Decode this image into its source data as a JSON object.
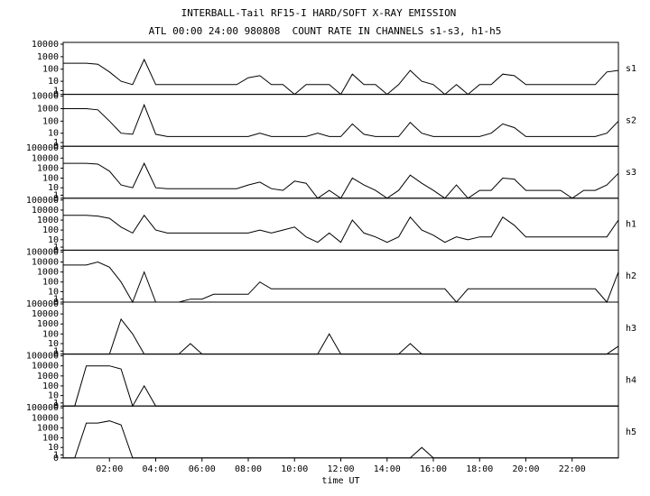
{
  "chart_data": [
    {
      "type": "line",
      "title": "INTERBALL-Tail RF15-I HARD/SOFT X-RAY EMISSION",
      "subtitle": "ATL 00:00 24:00 980808  COUNT RATE IN CHANNELS s1-s3, h1-h5",
      "label": "s1",
      "log_scale": true,
      "color": "#000000",
      "xlim": [
        0,
        24
      ],
      "ylim": [
        0,
        10000
      ],
      "yticks": [
        10000,
        1000,
        100,
        10,
        1,
        0
      ],
      "x": [
        0,
        0.5,
        1,
        1.5,
        2,
        2.5,
        3,
        3.5,
        4,
        4.5,
        5,
        5.5,
        6,
        6.5,
        7,
        7.5,
        8,
        8.5,
        9,
        9.5,
        10,
        10.5,
        11,
        11.5,
        12,
        12.5,
        13,
        13.5,
        14,
        14.5,
        15,
        15.5,
        16,
        16.5,
        17,
        17.5,
        18,
        18.5,
        19,
        19.5,
        20,
        20.5,
        21,
        21.5,
        22,
        22.5,
        23,
        23.5,
        24
      ],
      "values": [
        300,
        300,
        300,
        250,
        60,
        10,
        5,
        600,
        5,
        5,
        5,
        5,
        5,
        5,
        5,
        5,
        20,
        30,
        5,
        5,
        0,
        5,
        5,
        5,
        0,
        40,
        5,
        5,
        0,
        5,
        80,
        10,
        5,
        0,
        5,
        0,
        5,
        5,
        40,
        30,
        5,
        5,
        5,
        5,
        5,
        5,
        5,
        60,
        80
      ]
    },
    {
      "type": "line",
      "label": "s2",
      "log_scale": true,
      "color": "#000000",
      "xlim": [
        0,
        24
      ],
      "ylim": [
        0,
        10000
      ],
      "yticks": [
        10000,
        1000,
        100,
        10,
        1,
        0
      ],
      "x": [
        0,
        0.5,
        1,
        1.5,
        2,
        2.5,
        3,
        3.5,
        4,
        4.5,
        5,
        5.5,
        6,
        6.5,
        7,
        7.5,
        8,
        8.5,
        9,
        9.5,
        10,
        10.5,
        11,
        11.5,
        12,
        12.5,
        13,
        13.5,
        14,
        14.5,
        15,
        15.5,
        16,
        16.5,
        17,
        17.5,
        18,
        18.5,
        19,
        19.5,
        20,
        20.5,
        21,
        21.5,
        22,
        22.5,
        23,
        23.5,
        24
      ],
      "values": [
        1000,
        1000,
        1000,
        800,
        100,
        10,
        8,
        2000,
        8,
        5,
        5,
        5,
        5,
        5,
        5,
        5,
        5,
        10,
        5,
        5,
        5,
        5,
        10,
        5,
        5,
        60,
        8,
        5,
        5,
        5,
        80,
        10,
        5,
        5,
        5,
        5,
        5,
        10,
        60,
        30,
        5,
        5,
        5,
        5,
        5,
        5,
        5,
        10,
        100
      ]
    },
    {
      "type": "line",
      "label": "s3",
      "log_scale": true,
      "color": "#000000",
      "xlim": [
        0,
        24
      ],
      "ylim": [
        0,
        100000
      ],
      "yticks": [
        100000,
        10000,
        1000,
        100,
        10,
        1,
        0
      ],
      "x": [
        0,
        0.5,
        1,
        1.5,
        2,
        2.5,
        3,
        3.5,
        4,
        4.5,
        5,
        5.5,
        6,
        6.5,
        7,
        7.5,
        8,
        8.5,
        9,
        9.5,
        10,
        10.5,
        11,
        11.5,
        12,
        12.5,
        13,
        13.5,
        14,
        14.5,
        15,
        15.5,
        16,
        16.5,
        17,
        17.5,
        18,
        18.5,
        19,
        19.5,
        20,
        20.5,
        21,
        21.5,
        22,
        22.5,
        23,
        23.5,
        24
      ],
      "values": [
        3000,
        3000,
        3000,
        2500,
        500,
        20,
        10,
        3000,
        10,
        8,
        8,
        8,
        8,
        8,
        8,
        8,
        20,
        40,
        8,
        5,
        50,
        30,
        0,
        5,
        0,
        100,
        20,
        5,
        0,
        5,
        200,
        30,
        5,
        0,
        20,
        0,
        5,
        5,
        100,
        80,
        5,
        5,
        5,
        5,
        0,
        5,
        5,
        20,
        300
      ]
    },
    {
      "type": "line",
      "label": "h1",
      "log_scale": true,
      "color": "#000000",
      "xlim": [
        0,
        24
      ],
      "ylim": [
        0,
        100000
      ],
      "yticks": [
        100000,
        10000,
        1000,
        100,
        10,
        1,
        0
      ],
      "x": [
        0,
        0.5,
        1,
        1.5,
        2,
        2.5,
        3,
        3.5,
        4,
        4.5,
        5,
        5.5,
        6,
        6.5,
        7,
        7.5,
        8,
        8.5,
        9,
        9.5,
        10,
        10.5,
        11,
        11.5,
        12,
        12.5,
        13,
        13.5,
        14,
        14.5,
        15,
        15.5,
        16,
        16.5,
        17,
        17.5,
        18,
        18.5,
        19,
        19.5,
        20,
        20.5,
        21,
        21.5,
        22,
        22.5,
        23,
        23.5,
        24
      ],
      "values": [
        3000,
        3000,
        3000,
        2500,
        1500,
        200,
        50,
        3000,
        100,
        50,
        50,
        50,
        50,
        50,
        50,
        50,
        50,
        100,
        50,
        100,
        200,
        20,
        5,
        50,
        5,
        1000,
        50,
        20,
        5,
        20,
        2000,
        100,
        30,
        5,
        20,
        10,
        20,
        20,
        2000,
        300,
        20,
        20,
        20,
        20,
        20,
        20,
        20,
        20,
        1000
      ]
    },
    {
      "type": "line",
      "label": "h2",
      "log_scale": true,
      "color": "#000000",
      "xlim": [
        0,
        24
      ],
      "ylim": [
        0,
        100000
      ],
      "yticks": [
        100000,
        10000,
        1000,
        100,
        10,
        1,
        0
      ],
      "x": [
        0,
        0.5,
        1,
        1.5,
        2,
        2.5,
        3,
        3.5,
        4,
        4.5,
        5,
        5.5,
        6,
        6.5,
        7,
        7.5,
        8,
        8.5,
        9,
        9.5,
        10,
        10.5,
        11,
        11.5,
        12,
        12.5,
        13,
        13.5,
        14,
        14.5,
        15,
        15.5,
        16,
        16.5,
        17,
        17.5,
        18,
        18.5,
        19,
        19.5,
        20,
        20.5,
        21,
        21.5,
        22,
        22.5,
        23,
        23.5,
        24
      ],
      "values": [
        5000,
        5000,
        5000,
        10000,
        3000,
        100,
        0,
        1000,
        0,
        0,
        0,
        1,
        1,
        5,
        5,
        5,
        5,
        100,
        20,
        20,
        20,
        20,
        20,
        20,
        20,
        20,
        20,
        20,
        20,
        20,
        20,
        20,
        20,
        20,
        0,
        20,
        20,
        20,
        20,
        20,
        20,
        20,
        20,
        20,
        20,
        20,
        20,
        0,
        1000
      ]
    },
    {
      "type": "line",
      "label": "h3",
      "log_scale": true,
      "color": "#000000",
      "xlim": [
        0,
        24
      ],
      "ylim": [
        0,
        100000
      ],
      "yticks": [
        100000,
        10000,
        1000,
        100,
        10,
        1,
        0
      ],
      "x": [
        0,
        0.5,
        1,
        1.5,
        2,
        2.5,
        3,
        3.5,
        4,
        4.5,
        5,
        5.5,
        6,
        6.5,
        7,
        7.5,
        8,
        8.5,
        9,
        9.5,
        10,
        10.5,
        11,
        11.5,
        12,
        12.5,
        13,
        13.5,
        14,
        14.5,
        15,
        15.5,
        16,
        16.5,
        17,
        17.5,
        18,
        18.5,
        19,
        19.5,
        20,
        20.5,
        21,
        21.5,
        22,
        22.5,
        23,
        23.5,
        24
      ],
      "values": [
        0,
        0,
        0,
        0,
        0,
        3000,
        100,
        0,
        0,
        0,
        0,
        10,
        0,
        0,
        0,
        0,
        0,
        0,
        0,
        0,
        0,
        0,
        0,
        100,
        0,
        0,
        0,
        0,
        0,
        0,
        10,
        0,
        0,
        0,
        0,
        0,
        0,
        0,
        0,
        0,
        0,
        0,
        0,
        0,
        0,
        0,
        0,
        0,
        5
      ]
    },
    {
      "type": "line",
      "label": "h4",
      "log_scale": true,
      "color": "#000000",
      "xlim": [
        0,
        24
      ],
      "ylim": [
        0,
        100000
      ],
      "yticks": [
        100000,
        10000,
        1000,
        100,
        10,
        1,
        0
      ],
      "x": [
        0,
        0.5,
        1,
        1.5,
        2,
        2.5,
        3,
        3.5,
        4,
        4.5,
        5,
        5.5,
        6,
        6.5,
        7,
        7.5,
        8,
        8.5,
        9,
        9.5,
        10,
        10.5,
        11,
        11.5,
        12,
        12.5,
        13,
        13.5,
        14,
        14.5,
        15,
        15.5,
        16,
        16.5,
        17,
        17.5,
        18,
        18.5,
        19,
        19.5,
        20,
        20.5,
        21,
        21.5,
        22,
        22.5,
        23,
        23.5,
        24
      ],
      "values": [
        0,
        0,
        10000,
        10000,
        10000,
        5000,
        0,
        100,
        0,
        0,
        0,
        0,
        0,
        0,
        0,
        0,
        0,
        0,
        0,
        0,
        0,
        0,
        0,
        0,
        0,
        0,
        0,
        0,
        0,
        0,
        0,
        0,
        0,
        0,
        0,
        0,
        0,
        0,
        0,
        0,
        0,
        0,
        0,
        0,
        0,
        0,
        0,
        0,
        0
      ]
    },
    {
      "type": "line",
      "label": "h5",
      "log_scale": true,
      "color": "#000000",
      "xlim": [
        0,
        24
      ],
      "ylim": [
        0,
        100000
      ],
      "yticks": [
        100000,
        10000,
        1000,
        100,
        10,
        1,
        0
      ],
      "xlabel": "time UT",
      "xticks": [
        {
          "value": 2,
          "label": "02:00"
        },
        {
          "value": 4,
          "label": "04:00"
        },
        {
          "value": 6,
          "label": "06:00"
        },
        {
          "value": 8,
          "label": "08:00"
        },
        {
          "value": 10,
          "label": "10:00"
        },
        {
          "value": 12,
          "label": "12:00"
        },
        {
          "value": 14,
          "label": "14:00"
        },
        {
          "value": 16,
          "label": "16:00"
        },
        {
          "value": 18,
          "label": "18:00"
        },
        {
          "value": 20,
          "label": "20:00"
        },
        {
          "value": 22,
          "label": "22:00"
        }
      ],
      "x": [
        0,
        0.5,
        1,
        1.5,
        2,
        2.5,
        3,
        3.5,
        4,
        4.5,
        5,
        5.5,
        6,
        6.5,
        7,
        7.5,
        8,
        8.5,
        9,
        9.5,
        10,
        10.5,
        11,
        11.5,
        12,
        12.5,
        13,
        13.5,
        14,
        14.5,
        15,
        15.5,
        16,
        16.5,
        17,
        17.5,
        18,
        18.5,
        19,
        19.5,
        20,
        20.5,
        21,
        21.5,
        22,
        22.5,
        23,
        23.5,
        24
      ],
      "values": [
        0,
        0,
        3000,
        3000,
        5000,
        2000,
        0,
        0,
        0,
        0,
        0,
        0,
        0,
        0,
        0,
        0,
        0,
        0,
        0,
        0,
        0,
        0,
        0,
        0,
        0,
        0,
        0,
        0,
        0,
        0,
        0,
        10,
        0,
        0,
        0,
        0,
        0,
        0,
        0,
        0,
        0,
        0,
        0,
        0,
        0,
        0,
        0,
        0,
        0
      ]
    }
  ]
}
